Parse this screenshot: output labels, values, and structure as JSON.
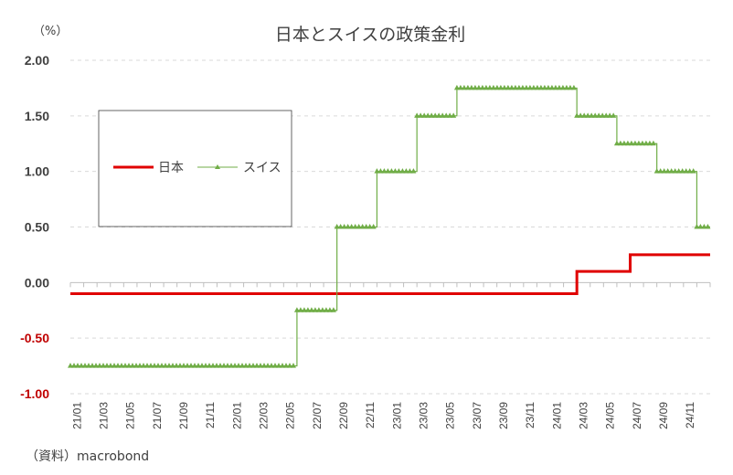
{
  "chart_data": {
    "type": "line",
    "title": "日本とスイスの政策金利",
    "unit_label": "（%）",
    "source": "（資料）macrobond",
    "ylim": [
      -1.0,
      2.0
    ],
    "yticks": [
      "2.00",
      "1.50",
      "1.00",
      "0.50",
      "0.00",
      "-0.50",
      "-1.00"
    ],
    "ytick_values": [
      2.0,
      1.5,
      1.0,
      0.5,
      0.0,
      -0.5,
      -1.0
    ],
    "negative_color": "#c00000",
    "positive_color": "#404040",
    "x_range": [
      "2021-01",
      "2024-12"
    ],
    "xticks": [
      "21/01",
      "21/03",
      "21/05",
      "21/07",
      "21/09",
      "21/11",
      "22/01",
      "22/03",
      "22/05",
      "22/07",
      "22/09",
      "22/11",
      "23/01",
      "23/03",
      "23/05",
      "23/07",
      "23/09",
      "23/11",
      "24/01",
      "24/03",
      "24/05",
      "24/07",
      "24/09",
      "24/11"
    ],
    "grid": "horizontal-dashed",
    "legend": "upper-left",
    "series": [
      {
        "name": "日本",
        "color": "#e00000",
        "marker": "none",
        "steps": [
          {
            "from": "2021-01",
            "value": -0.1
          },
          {
            "from": "2024-03",
            "value": 0.1
          },
          {
            "from": "2024-07",
            "value": 0.25
          }
        ]
      },
      {
        "name": "スイス",
        "color": "#70ad47",
        "marker": "triangle",
        "steps": [
          {
            "from": "2021-01",
            "value": -0.75
          },
          {
            "from": "2022-06",
            "value": -0.25
          },
          {
            "from": "2022-09",
            "value": 0.5
          },
          {
            "from": "2022-12",
            "value": 1.0
          },
          {
            "from": "2023-03",
            "value": 1.5
          },
          {
            "from": "2023-06",
            "value": 1.75
          },
          {
            "from": "2024-03",
            "value": 1.5
          },
          {
            "from": "2024-06",
            "value": 1.25
          },
          {
            "from": "2024-09",
            "value": 1.0
          },
          {
            "from": "2024-12",
            "value": 0.5
          }
        ]
      }
    ]
  }
}
